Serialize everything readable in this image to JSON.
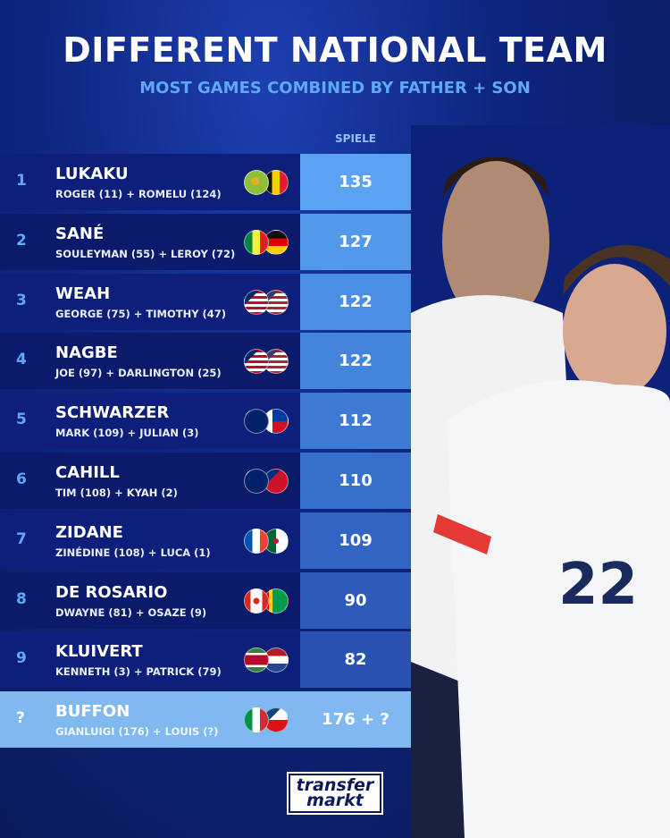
{
  "header": {
    "title": "DIFFERENT NATIONAL TEAM",
    "subtitle": "MOST GAMES COMBINED BY FATHER + SON",
    "column_label": "SPIELE"
  },
  "rows": [
    {
      "rank": "1",
      "name": "LUKAKU",
      "detail": "ROGER (11) + ROMELU (124)",
      "score": "135",
      "flags": [
        "zaire-flag",
        "belgium-flag"
      ],
      "score_color": "#5ba3f2"
    },
    {
      "rank": "2",
      "name": "SANÉ",
      "detail": "SOULEYMAN (55) + LEROY (72)",
      "score": "127",
      "flags": [
        "senegal-flag",
        "germany-flag"
      ],
      "score_color": "#5299ec"
    },
    {
      "rank": "3",
      "name": "WEAH",
      "detail": "GEORGE (75) + TIMOTHY (47)",
      "score": "122",
      "flags": [
        "liberia-flag",
        "usa-flag"
      ],
      "score_color": "#4a8fe5"
    },
    {
      "rank": "4",
      "name": "NAGBE",
      "detail": "JOE (97) + DARLINGTON (25)",
      "score": "122",
      "flags": [
        "liberia-flag",
        "usa-flag"
      ],
      "score_color": "#4384dc"
    },
    {
      "rank": "5",
      "name": "SCHWARZER",
      "detail": "MARK (109) + JULIAN (3)",
      "score": "112",
      "flags": [
        "australia-flag",
        "philippines-flag"
      ],
      "score_color": "#3d7ad4"
    },
    {
      "rank": "6",
      "name": "CAHILL",
      "detail": "TIM (108) + KYAH (2)",
      "score": "110",
      "flags": [
        "australia-flag",
        "samoa-flag"
      ],
      "score_color": "#376fcc"
    },
    {
      "rank": "7",
      "name": "ZIDANE",
      "detail": "ZINÉDINE (108) + LUCA (1)",
      "score": "109",
      "flags": [
        "france-flag",
        "algeria-flag"
      ],
      "score_color": "#3265c3"
    },
    {
      "rank": "8",
      "name": "DE ROSARIO",
      "detail": "DWAYNE (81) + OSAZE (9)",
      "score": "90",
      "flags": [
        "canada-flag",
        "guyana-flag"
      ],
      "score_color": "#2d5abb"
    },
    {
      "rank": "9",
      "name": "KLUIVERT",
      "detail": "KENNETH (3) + PATRICK (79)",
      "score": "82",
      "flags": [
        "suriname-flag",
        "netherlands-flag"
      ],
      "score_color": "#2a52b3"
    },
    {
      "rank": "?",
      "name": "BUFFON",
      "detail": "GIANLUIGI (176) + LOUIS (?)",
      "score": "176 + ?",
      "flags": [
        "italy-flag",
        "czechia-flag"
      ],
      "score_color": "#80b9f0",
      "highlight": true
    }
  ],
  "photo": {
    "shirt_number": "22"
  },
  "logo": {
    "line1": "transfer",
    "line2": "markt"
  }
}
